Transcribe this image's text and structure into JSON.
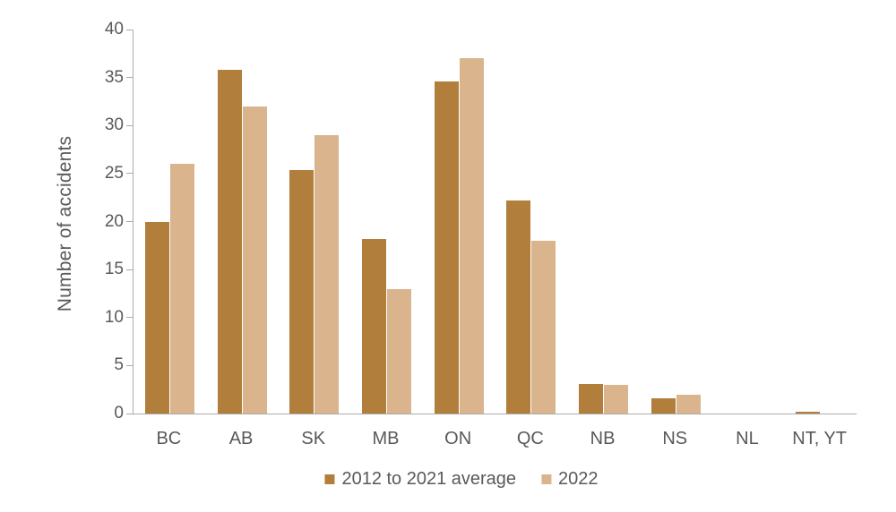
{
  "chart_data": {
    "type": "bar",
    "title": "",
    "xlabel": "",
    "ylabel": "Number of accidents",
    "categories": [
      "BC",
      "AB",
      "SK",
      "MB",
      "ON",
      "QC",
      "NB",
      "NS",
      "NL",
      "NT, YT"
    ],
    "series": [
      {
        "name": "2012 to 2021 average",
        "color": "#b17e3b",
        "values": [
          20.0,
          35.8,
          25.4,
          18.2,
          34.6,
          22.2,
          3.1,
          1.6,
          0,
          0.2
        ]
      },
      {
        "name": "2022",
        "color": "#d9b48c",
        "values": [
          26,
          32,
          29,
          13,
          37,
          18,
          3,
          2,
          0,
          0
        ]
      }
    ],
    "ylim": [
      0,
      40
    ],
    "yticks": [
      0,
      5,
      10,
      15,
      20,
      25,
      30,
      35,
      40
    ],
    "grid": false,
    "legend_position": "bottom"
  },
  "colors": {
    "axis_line": "#ababab",
    "text": "#595959",
    "background": "#ffffff"
  }
}
